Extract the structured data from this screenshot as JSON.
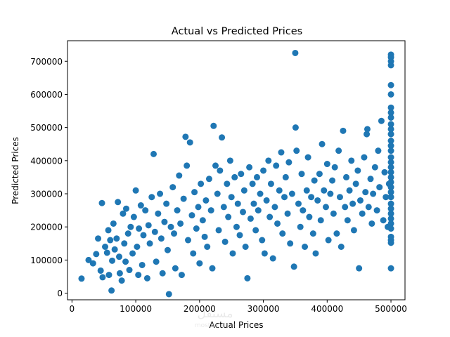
{
  "chart_data": {
    "type": "scatter",
    "title": "Actual vs Predicted Prices",
    "xlabel": "Actual Prices",
    "ylabel": "Predicted Prices",
    "xlim": [
      -7000,
      522000
    ],
    "ylim": [
      -20000,
      762000
    ],
    "xticks": [
      0,
      100000,
      200000,
      300000,
      400000,
      500000
    ],
    "yticks": [
      0,
      100000,
      200000,
      300000,
      400000,
      500000,
      600000,
      700000
    ],
    "grid": false,
    "color": "#1f77b4",
    "series": [
      {
        "points": [
          [
            14999,
            44000
          ],
          [
            26000,
            100000
          ],
          [
            33000,
            90000
          ],
          [
            38000,
            118000
          ],
          [
            41000,
            165000
          ],
          [
            45000,
            68000
          ],
          [
            47000,
            272000
          ],
          [
            48000,
            48000
          ],
          [
            52000,
            140000
          ],
          [
            55000,
            122000
          ],
          [
            57000,
            190000
          ],
          [
            58000,
            55000
          ],
          [
            60000,
            160000
          ],
          [
            62000,
            8000
          ],
          [
            63000,
            98000
          ],
          [
            65000,
            210000
          ],
          [
            67000,
            132000
          ],
          [
            70000,
            165000
          ],
          [
            72000,
            275000
          ],
          [
            74000,
            110000
          ],
          [
            75000,
            60000
          ],
          [
            78000,
            38000
          ],
          [
            80000,
            240000
          ],
          [
            82000,
            150000
          ],
          [
            84000,
            95000
          ],
          [
            85000,
            255000
          ],
          [
            88000,
            180000
          ],
          [
            90000,
            70000
          ],
          [
            92000,
            200000
          ],
          [
            95000,
            120000
          ],
          [
            97000,
            230000
          ],
          [
            100000,
            310000
          ],
          [
            102000,
            140000
          ],
          [
            104000,
            55000
          ],
          [
            105000,
            195000
          ],
          [
            108000,
            265000
          ],
          [
            110000,
            85000
          ],
          [
            112000,
            175000
          ],
          [
            115000,
            250000
          ],
          [
            118000,
            45000
          ],
          [
            120000,
            205000
          ],
          [
            122000,
            150000
          ],
          [
            125000,
            290000
          ],
          [
            128000,
            420000
          ],
          [
            130000,
            185000
          ],
          [
            132000,
            95000
          ],
          [
            135000,
            240000
          ],
          [
            138000,
            300000
          ],
          [
            140000,
            165000
          ],
          [
            142000,
            60000
          ],
          [
            145000,
            215000
          ],
          [
            148000,
            270000
          ],
          [
            150000,
            130000
          ],
          [
            152000,
            -3000
          ],
          [
            155000,
            200000
          ],
          [
            158000,
            320000
          ],
          [
            160000,
            180000
          ],
          [
            162000,
            75000
          ],
          [
            165000,
            250000
          ],
          [
            168000,
            355000
          ],
          [
            170000,
            210000
          ],
          [
            172000,
            55000
          ],
          [
            175000,
            285000
          ],
          [
            178000,
            472000
          ],
          [
            180000,
            385000
          ],
          [
            182000,
            160000
          ],
          [
            185000,
            455000
          ],
          [
            188000,
            235000
          ],
          [
            190000,
            120000
          ],
          [
            192000,
            305000
          ],
          [
            195000,
            195000
          ],
          [
            198000,
            260000
          ],
          [
            200000,
            90000
          ],
          [
            202000,
            330000
          ],
          [
            205000,
            220000
          ],
          [
            208000,
            170000
          ],
          [
            210000,
            280000
          ],
          [
            212000,
            140000
          ],
          [
            215000,
            345000
          ],
          [
            218000,
            250000
          ],
          [
            220000,
            75000
          ],
          [
            222000,
            505000
          ],
          [
            225000,
            385000
          ],
          [
            228000,
            300000
          ],
          [
            230000,
            190000
          ],
          [
            232000,
            370000
          ],
          [
            235000,
            470000
          ],
          [
            238000,
            260000
          ],
          [
            240000,
            155000
          ],
          [
            243000,
            330000
          ],
          [
            245000,
            230000
          ],
          [
            248000,
            400000
          ],
          [
            250000,
            290000
          ],
          [
            252000,
            120000
          ],
          [
            255000,
            350000
          ],
          [
            258000,
            200000
          ],
          [
            260000,
            270000
          ],
          [
            263000,
            175000
          ],
          [
            265000,
            360000
          ],
          [
            268000,
            245000
          ],
          [
            270000,
            310000
          ],
          [
            272000,
            140000
          ],
          [
            275000,
            45000
          ],
          [
            278000,
            380000
          ],
          [
            280000,
            225000
          ],
          [
            283000,
            330000
          ],
          [
            285000,
            270000
          ],
          [
            288000,
            190000
          ],
          [
            290000,
            350000
          ],
          [
            292000,
            250000
          ],
          [
            295000,
            300000
          ],
          [
            298000,
            160000
          ],
          [
            300000,
            370000
          ],
          [
            302000,
            120000
          ],
          [
            305000,
            280000
          ],
          [
            308000,
            400000
          ],
          [
            310000,
            230000
          ],
          [
            312000,
            330000
          ],
          [
            315000,
            105000
          ],
          [
            318000,
            260000
          ],
          [
            320000,
            385000
          ],
          [
            322000,
            210000
          ],
          [
            325000,
            310000
          ],
          [
            328000,
            425000
          ],
          [
            330000,
            180000
          ],
          [
            333000,
            290000
          ],
          [
            335000,
            350000
          ],
          [
            338000,
            240000
          ],
          [
            340000,
            395000
          ],
          [
            342000,
            150000
          ],
          [
            345000,
            300000
          ],
          [
            348000,
            80000
          ],
          [
            350000,
            725000
          ],
          [
            350500,
            500000
          ],
          [
            352000,
            430000
          ],
          [
            355000,
            270000
          ],
          [
            358000,
            200000
          ],
          [
            360000,
            360000
          ],
          [
            362000,
            250000
          ],
          [
            365000,
            140000
          ],
          [
            368000,
            310000
          ],
          [
            370000,
            410000
          ],
          [
            372000,
            230000
          ],
          [
            375000,
            290000
          ],
          [
            378000,
            180000
          ],
          [
            380000,
            340000
          ],
          [
            382000,
            120000
          ],
          [
            385000,
            280000
          ],
          [
            388000,
            360000
          ],
          [
            390000,
            220000
          ],
          [
            392000,
            450000
          ],
          [
            395000,
            310000
          ],
          [
            398000,
            260000
          ],
          [
            400000,
            390000
          ],
          [
            402000,
            160000
          ],
          [
            405000,
            300000
          ],
          [
            408000,
            340000
          ],
          [
            410000,
            240000
          ],
          [
            412000,
            380000
          ],
          [
            415000,
            180000
          ],
          [
            418000,
            430000
          ],
          [
            420000,
            290000
          ],
          [
            422000,
            140000
          ],
          [
            425000,
            490000
          ],
          [
            428000,
            260000
          ],
          [
            430000,
            350000
          ],
          [
            432000,
            220000
          ],
          [
            435000,
            310000
          ],
          [
            438000,
            400000
          ],
          [
            440000,
            270000
          ],
          [
            442000,
            190000
          ],
          [
            445000,
            330000
          ],
          [
            448000,
            370000
          ],
          [
            450000,
            75000
          ],
          [
            452000,
            280000
          ],
          [
            455000,
            240000
          ],
          [
            458000,
            410000
          ],
          [
            460000,
            305000
          ],
          [
            462000,
            480000
          ],
          [
            463000,
            495000
          ],
          [
            465000,
            260000
          ],
          [
            468000,
            345000
          ],
          [
            470000,
            210000
          ],
          [
            472000,
            300000
          ],
          [
            475000,
            380000
          ],
          [
            478000,
            250000
          ],
          [
            480000,
            430000
          ],
          [
            482000,
            320000
          ],
          [
            485000,
            520000
          ],
          [
            488000,
            220000
          ],
          [
            490000,
            365000
          ],
          [
            492000,
            290000
          ],
          [
            495000,
            200000
          ],
          [
            497000,
            330000
          ],
          [
            500001,
            720000
          ],
          [
            500001,
            712000
          ],
          [
            500001,
            700000
          ],
          [
            500001,
            688000
          ],
          [
            500001,
            628000
          ],
          [
            500001,
            600000
          ],
          [
            500001,
            560000
          ],
          [
            500001,
            545000
          ],
          [
            500001,
            530000
          ],
          [
            500001,
            510000
          ],
          [
            500001,
            495000
          ],
          [
            500001,
            480000
          ],
          [
            500001,
            460000
          ],
          [
            500001,
            445000
          ],
          [
            500001,
            430000
          ],
          [
            500001,
            410000
          ],
          [
            500001,
            395000
          ],
          [
            500001,
            380000
          ],
          [
            500001,
            365000
          ],
          [
            500001,
            350000
          ],
          [
            500001,
            335000
          ],
          [
            500001,
            320000
          ],
          [
            500001,
            305000
          ],
          [
            500001,
            290000
          ],
          [
            500001,
            270000
          ],
          [
            500001,
            255000
          ],
          [
            500001,
            240000
          ],
          [
            500001,
            225000
          ],
          [
            500001,
            210000
          ],
          [
            500001,
            195000
          ],
          [
            500001,
            170000
          ],
          [
            500001,
            160000
          ],
          [
            500001,
            152000
          ],
          [
            500001,
            75000
          ]
        ]
      }
    ]
  }
}
